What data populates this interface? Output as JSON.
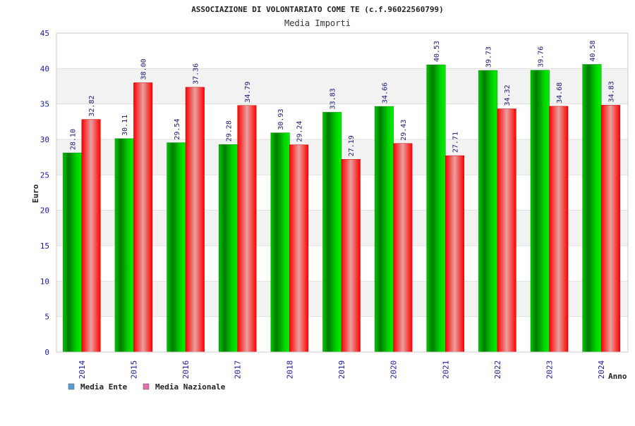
{
  "chart_data": {
    "type": "bar",
    "title": "ASSOCIAZIONE DI VOLONTARIATO COME TE (c.f.96022560799)",
    "subtitle": "Media Importi",
    "xlabel": "Anno",
    "ylabel": "Euro",
    "ylim": [
      0,
      45
    ],
    "yticks": [
      0,
      5,
      10,
      15,
      20,
      25,
      30,
      35,
      40,
      45
    ],
    "grid": true,
    "legend_position": "bottom-left",
    "categories": [
      "2014",
      "2015",
      "2016",
      "2017",
      "2018",
      "2019",
      "2020",
      "2021",
      "2022",
      "2023",
      "2024"
    ],
    "series": [
      {
        "name": "Media Ente",
        "color": "#00c000",
        "legend_color": "#5b9bd5",
        "values": [
          28.1,
          30.11,
          29.54,
          29.28,
          30.93,
          33.83,
          34.66,
          40.53,
          39.73,
          39.76,
          40.58
        ],
        "labels": [
          "28.10",
          "30.11",
          "29.54",
          "29.28",
          "30.93",
          "33.83",
          "34.66",
          "40.53",
          "39.73",
          "39.76",
          "40.58"
        ]
      },
      {
        "name": "Media Nazionale",
        "color": "#ff1010",
        "legend_color": "#e36fae",
        "values": [
          32.82,
          38.0,
          37.36,
          34.79,
          29.24,
          27.19,
          29.43,
          27.71,
          34.32,
          34.68,
          34.83
        ],
        "labels": [
          "32.82",
          "38.00",
          "37.36",
          "34.79",
          "29.24",
          "27.19",
          "29.43",
          "27.71",
          "34.32",
          "34.68",
          "34.83"
        ]
      }
    ]
  }
}
